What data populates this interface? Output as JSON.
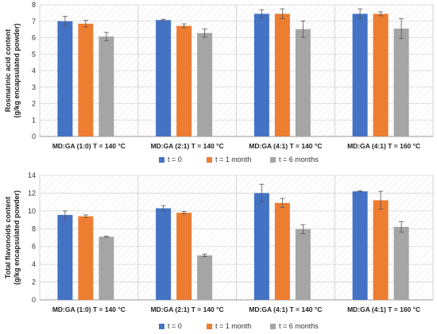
{
  "chart_data": [
    {
      "type": "bar",
      "ylabel_line1": "Rosmarinic acid content",
      "ylabel_line2": "(g/kg encapsulated powder)",
      "ylim": [
        0,
        8
      ],
      "yticks": [
        0,
        1,
        2,
        3,
        4,
        5,
        6,
        7,
        8
      ],
      "grid": true,
      "categories": [
        "MD:GA (1:0)  T = 140 °C",
        "MD:GA (2:1)  T = 140 °C",
        "MD:GA (4:1) T = 140 °C",
        "MD:GA (4:1) T = 160 °C"
      ],
      "series": [
        {
          "name": "t = 0",
          "color": "#4472C4",
          "values": [
            7.0,
            7.07,
            7.45,
            7.45
          ],
          "errors": [
            0.3,
            0.05,
            0.25,
            0.3
          ]
        },
        {
          "name": "t = 1 month",
          "color": "#ED7D31",
          "values": [
            6.85,
            6.72,
            7.45,
            7.45
          ],
          "errors": [
            0.2,
            0.12,
            0.3,
            0.12
          ]
        },
        {
          "name": "t = 6 months",
          "color": "#A5A5A5",
          "values": [
            6.07,
            6.28,
            6.52,
            6.55
          ],
          "errors": [
            0.25,
            0.25,
            0.5,
            0.6
          ]
        }
      ]
    },
    {
      "type": "bar",
      "ylabel_line1": "Total flavonoids content",
      "ylabel_line2": "(g/kg encapsulated powder)",
      "ylim": [
        0,
        14
      ],
      "yticks": [
        0,
        2,
        4,
        6,
        8,
        10,
        12,
        14
      ],
      "grid": true,
      "categories": [
        "MD:GA (1:0)  T = 140 °C",
        "MD:GA (2:1)  T = 140 °C",
        "MD:GA (4:1) T = 140 °C",
        "MD:GA (4:1) T = 160 °C"
      ],
      "series": [
        {
          "name": "t = 0",
          "color": "#4472C4",
          "values": [
            9.55,
            10.3,
            12.0,
            12.2
          ],
          "errors": [
            0.45,
            0.3,
            1.0,
            0.05
          ]
        },
        {
          "name": "t = 1 month",
          "color": "#ED7D31",
          "values": [
            9.4,
            9.8,
            10.9,
            11.2
          ],
          "errors": [
            0.15,
            0.15,
            0.5,
            1.0
          ]
        },
        {
          "name": "t = 6 months",
          "color": "#A5A5A5",
          "values": [
            7.1,
            5.0,
            7.95,
            8.2
          ],
          "errors": [
            0.05,
            0.15,
            0.5,
            0.6
          ]
        }
      ]
    }
  ],
  "legend": {
    "placement": "below",
    "items": [
      "t = 0",
      "t = 1 month",
      "t = 6 months"
    ]
  }
}
